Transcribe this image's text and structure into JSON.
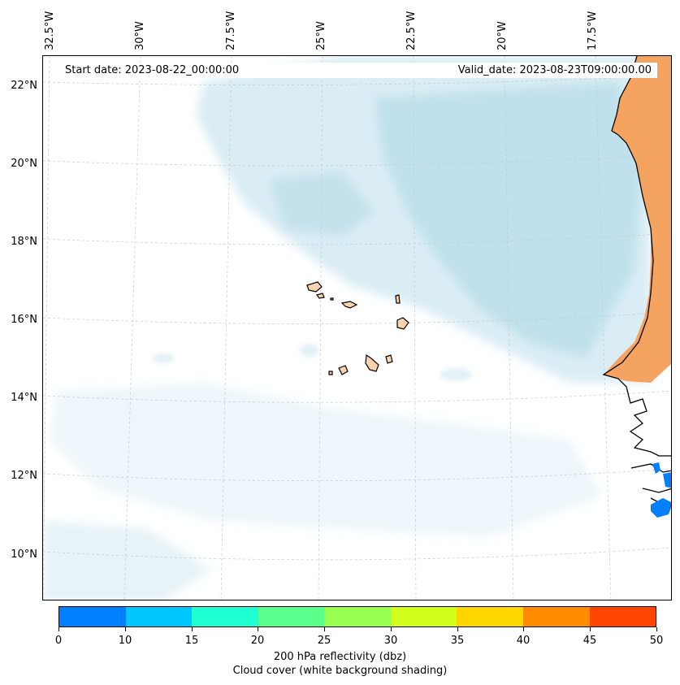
{
  "map": {
    "start_date": "Start date: 2023-08-22_00:00:00",
    "valid_date": "Valid_date: 2023-08-23T09:00:00.00",
    "longitude_labels": [
      "32.5°W",
      "30°W",
      "27.5°W",
      "25°W",
      "22.5°W",
      "20°W",
      "17.5°W"
    ],
    "latitude_labels": [
      "22°N",
      "20°N",
      "18°N",
      "16°N",
      "14°N",
      "12°N",
      "10°N"
    ],
    "land_color": "#f4a460",
    "cloud_color": "#add8e6",
    "coastline_color": "#000000"
  },
  "colorbar": {
    "title": "200 hPa reflectivity (dbz)",
    "subtitle": "Cloud cover (white background shading)",
    "ticks": [
      "0",
      "10",
      "15",
      "20",
      "25",
      "30",
      "35",
      "40",
      "45",
      "50"
    ],
    "colors": [
      "#0080ff",
      "#00c8ff",
      "#1effd2",
      "#5aff8c",
      "#96ff50",
      "#d2ff1e",
      "#ffd700",
      "#ff8c00",
      "#ff4600"
    ]
  }
}
